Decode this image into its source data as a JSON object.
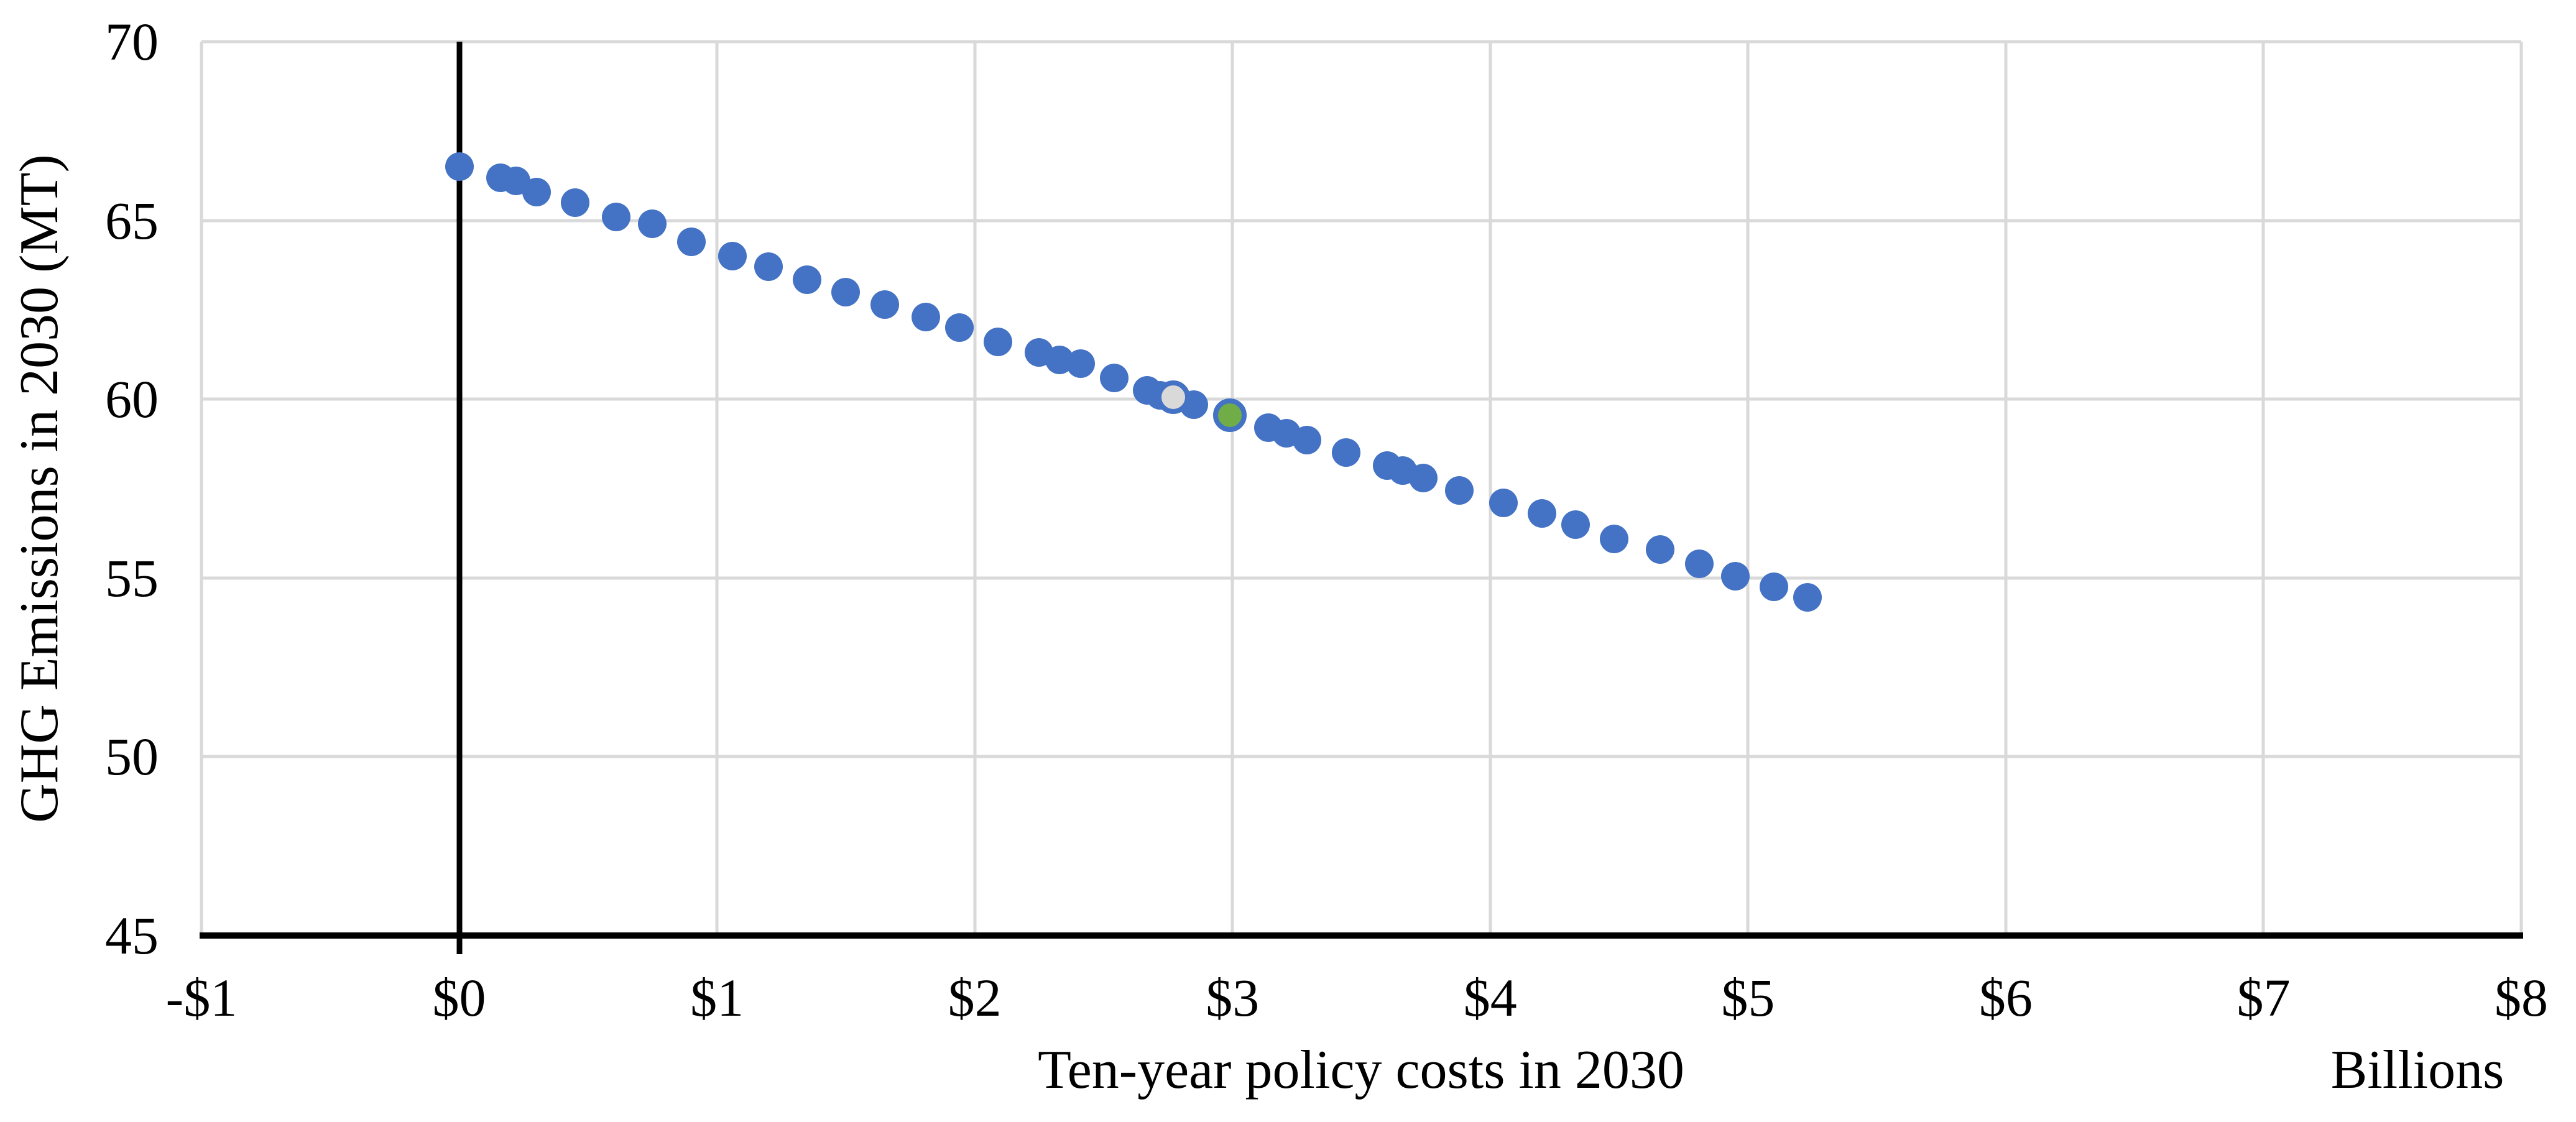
{
  "page": {
    "background_color": "#ffffff"
  },
  "colors": {
    "series_blue": "#4472C4",
    "highlight_gray_fill": "#D9D9D9",
    "highlight_green_fill": "#70AD47",
    "highlight_outline_blue": "#4472C4",
    "gridline_gray": "#D9D9D9",
    "axis_black": "#000000",
    "text_black": "#000000"
  },
  "chart_data": {
    "type": "scatter",
    "title": "",
    "xlabel": "Ten-year policy costs in 2030",
    "ylabel": "GHG Emissions in 2030 (MT)",
    "x_unit_note": "Billions",
    "xlim": [
      -1,
      8
    ],
    "ylim": [
      45,
      70
    ],
    "grid": true,
    "legend_position": "none",
    "x_axis_cross_value": 0,
    "x_tick_values": [
      -1,
      0,
      1,
      2,
      3,
      4,
      5,
      6,
      7,
      8
    ],
    "x_tick_labels": [
      "-$1",
      "$0",
      "$1",
      "$2",
      "$3",
      "$4",
      "$5",
      "$6",
      "$7",
      "$8"
    ],
    "y_tick_values": [
      45,
      50,
      55,
      60,
      65,
      70
    ],
    "y_tick_labels": [
      "45",
      "50",
      "55",
      "60",
      "65",
      "70"
    ],
    "series": [
      {
        "name": "blue-scenario-points",
        "marker": "circle",
        "color": "#4472C4",
        "points": [
          [
            0.0,
            66.5
          ],
          [
            0.16,
            66.2
          ],
          [
            0.22,
            66.1
          ],
          [
            0.3,
            65.8
          ],
          [
            0.45,
            65.5
          ],
          [
            0.61,
            65.1
          ],
          [
            0.75,
            64.9
          ],
          [
            0.9,
            64.4
          ],
          [
            1.06,
            64.0
          ],
          [
            1.2,
            63.7
          ],
          [
            1.35,
            63.35
          ],
          [
            1.5,
            63.0
          ],
          [
            1.65,
            62.65
          ],
          [
            1.81,
            62.3
          ],
          [
            1.94,
            62.0
          ],
          [
            2.09,
            61.6
          ],
          [
            2.25,
            61.3
          ],
          [
            2.33,
            61.1
          ],
          [
            2.41,
            61.0
          ],
          [
            2.54,
            60.6
          ],
          [
            2.67,
            60.25
          ],
          [
            2.72,
            60.1
          ],
          [
            2.85,
            59.85
          ],
          [
            3.14,
            59.2
          ],
          [
            3.21,
            59.05
          ],
          [
            3.29,
            58.85
          ],
          [
            3.44,
            58.5
          ],
          [
            3.6,
            58.15
          ],
          [
            3.66,
            58.0
          ],
          [
            3.74,
            57.8
          ],
          [
            3.88,
            57.45
          ],
          [
            4.05,
            57.1
          ],
          [
            4.2,
            56.8
          ],
          [
            4.33,
            56.5
          ],
          [
            4.48,
            56.1
          ],
          [
            4.66,
            55.8
          ],
          [
            4.81,
            55.4
          ],
          [
            4.95,
            55.05
          ],
          [
            5.1,
            54.75
          ],
          [
            5.23,
            54.45
          ]
        ]
      },
      {
        "name": "gray-highlight-point",
        "marker": "circle-outlined",
        "color": "#D9D9D9",
        "outline_color": "#4472C4",
        "points": [
          [
            2.77,
            60.05
          ]
        ]
      },
      {
        "name": "green-highlight-point",
        "marker": "circle-outlined",
        "color": "#70AD47",
        "outline_color": "#4472C4",
        "points": [
          [
            2.99,
            59.55
          ]
        ]
      }
    ]
  }
}
